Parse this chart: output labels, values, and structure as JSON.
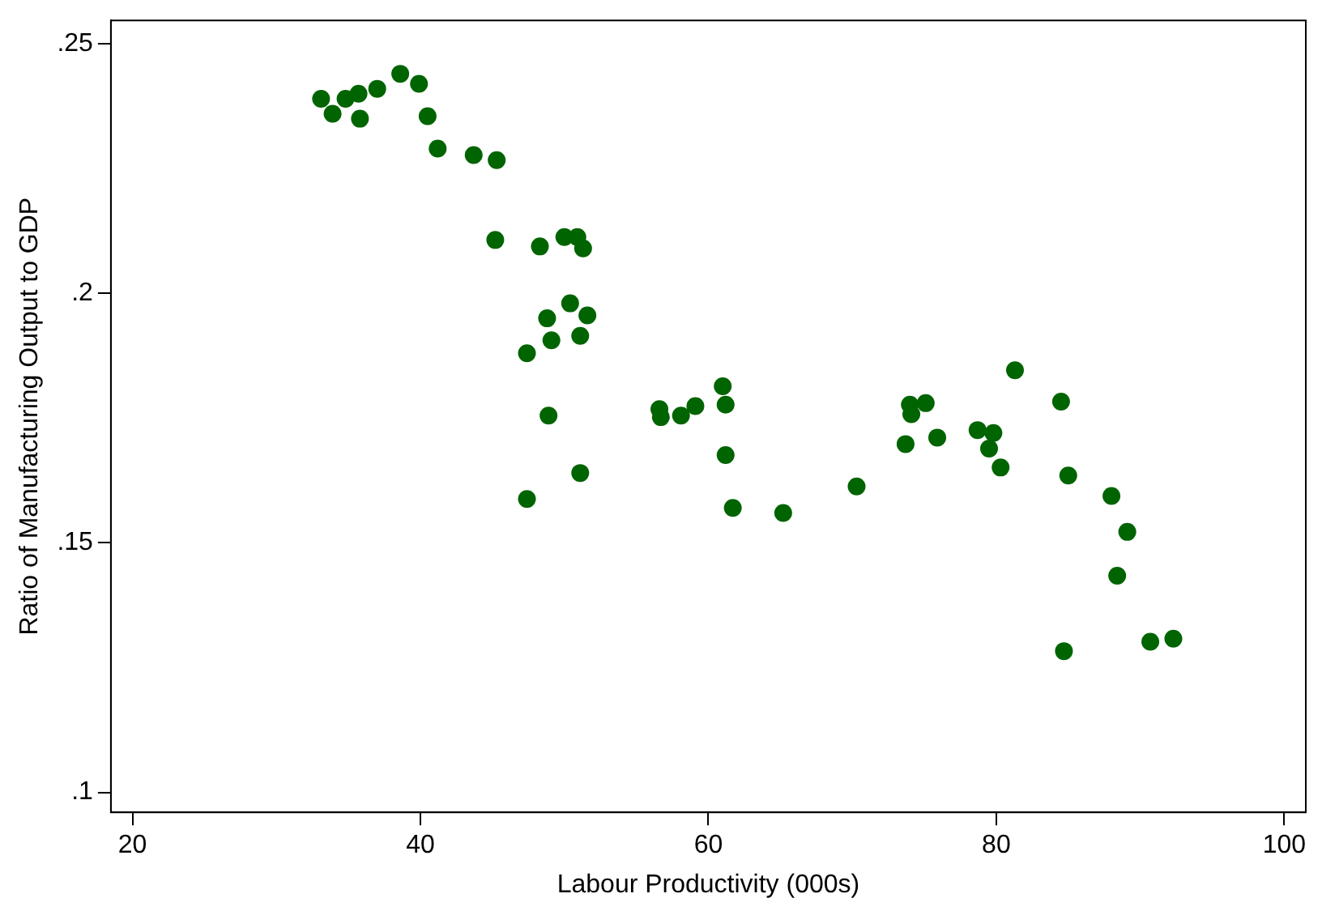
{
  "chart_data": {
    "type": "scatter",
    "xlabel": "Labour Productivity (000s)",
    "ylabel": "Ratio of Manufacturing Output to GDP",
    "xlim": [
      18.5,
      101.5
    ],
    "xticks": [
      20,
      40,
      60,
      80,
      100
    ],
    "ylim": [
      0.096,
      0.2547
    ],
    "yticks": [
      {
        "value": 0.1,
        "label": ".1"
      },
      {
        "value": 0.15,
        "label": ".15"
      },
      {
        "value": 0.2,
        "label": ".2"
      },
      {
        "value": 0.25,
        "label": ".25"
      }
    ],
    "grid": false,
    "marker": "circle",
    "series": [
      {
        "color": "#006400",
        "x": [
          33.1,
          33.9,
          34.8,
          35.7,
          35.8,
          37.0,
          38.6,
          39.9,
          40.5,
          41.2,
          43.7,
          45.3,
          45.2,
          48.3,
          50.0,
          50.9,
          51.3,
          50.4,
          48.8,
          51.6,
          49.1,
          51.1,
          47.4,
          48.9,
          51.1,
          47.4,
          56.6,
          56.7,
          58.1,
          59.1,
          61.0,
          61.2,
          61.2,
          61.7,
          65.2,
          70.3,
          73.7,
          74.0,
          74.1,
          75.1,
          75.9,
          81.3,
          78.7,
          79.8,
          79.5,
          80.3,
          84.5,
          85.0,
          88.0,
          89.1,
          88.4,
          84.7,
          90.7,
          92.3
        ],
        "values": [
          0.239,
          0.236,
          0.239,
          0.24,
          0.235,
          0.241,
          0.244,
          0.242,
          0.2355,
          0.229,
          0.2277,
          0.2267,
          0.2107,
          0.2094,
          0.2113,
          0.2113,
          0.209,
          0.198,
          0.195,
          0.1956,
          0.1906,
          0.1915,
          0.188,
          0.1755,
          0.164,
          0.1588,
          0.1768,
          0.1752,
          0.1755,
          0.1774,
          0.1814,
          0.1777,
          0.1676,
          0.157,
          0.156,
          0.1613,
          0.1698,
          0.1777,
          0.1758,
          0.178,
          0.1711,
          0.1846,
          0.1726,
          0.172,
          0.1689,
          0.1651,
          0.1783,
          0.1635,
          0.1594,
          0.1522,
          0.1434,
          0.1283,
          0.1302,
          0.1308
        ]
      }
    ]
  }
}
